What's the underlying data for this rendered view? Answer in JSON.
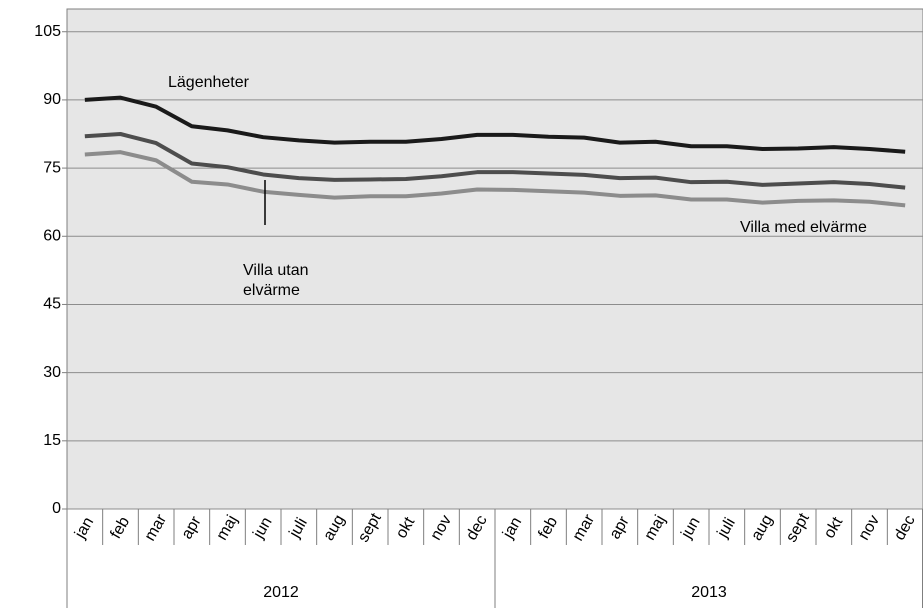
{
  "chart_data": {
    "type": "line",
    "categories": [
      "jan",
      "feb",
      "mar",
      "apr",
      "maj",
      "jun",
      "juli",
      "aug",
      "sept",
      "okt",
      "nov",
      "dec",
      "jan",
      "feb",
      "mar",
      "apr",
      "maj",
      "jun",
      "juli",
      "aug",
      "sept",
      "okt",
      "nov",
      "dec"
    ],
    "years": [
      "2012",
      "2013"
    ],
    "series": [
      {
        "name": "Lägenheter",
        "color": "#1a1a1a",
        "values": [
          90,
          90.5,
          88.5,
          84.2,
          83.3,
          81.8,
          81.1,
          80.6,
          80.8,
          80.8,
          81.4,
          82.3,
          82.3,
          81.9,
          81.7,
          80.6,
          80.8,
          79.8,
          79.8,
          79.2,
          79.3,
          79.6,
          79.2,
          78.6
        ]
      },
      {
        "name": "Villa med elvärme",
        "color": "#4d4d4d",
        "values": [
          82,
          82.5,
          80.5,
          76,
          75.2,
          73.6,
          72.8,
          72.4,
          72.5,
          72.6,
          73.2,
          74.1,
          74.1,
          73.8,
          73.5,
          72.8,
          72.9,
          71.9,
          72,
          71.3,
          71.6,
          71.9,
          71.5,
          70.7
        ]
      },
      {
        "name": "Villa utan\nelvärme",
        "color": "#8c8c8c",
        "values": [
          78,
          78.5,
          76.7,
          72,
          71.4,
          69.8,
          69.1,
          68.5,
          68.8,
          68.8,
          69.4,
          70.3,
          70.2,
          69.9,
          69.6,
          68.9,
          69,
          68.1,
          68.1,
          67.4,
          67.8,
          67.9,
          67.6,
          66.8
        ]
      }
    ],
    "ylim": [
      0,
      110
    ],
    "yticks": [
      0,
      15,
      30,
      45,
      60,
      75,
      90,
      105
    ],
    "grid": true
  }
}
